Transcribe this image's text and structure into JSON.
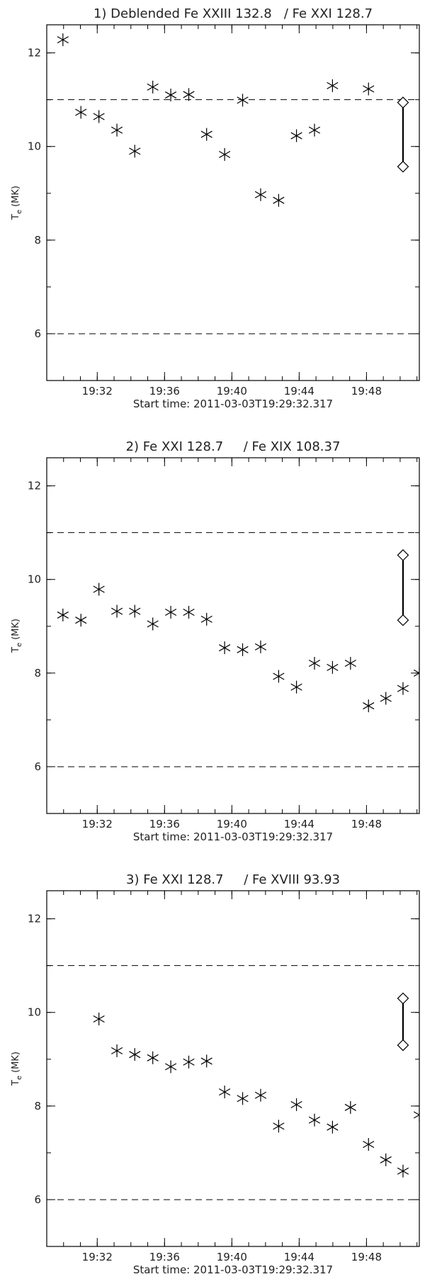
{
  "chart_data": [
    {
      "type": "scatter",
      "title": "1) Deblended Fe XXIII 132.8   / Fe XXI 128.7",
      "xlabel": "Start time: 2011-03-03T19:29:32.317",
      "ylabel": "T",
      "ylabel_subscript": "e",
      "ylabel_unit": "(MK)",
      "xlim": [
        29,
        51.14
      ],
      "ylim": [
        5,
        12.6
      ],
      "xticks": [
        {
          "value": 32,
          "label": "19:32"
        },
        {
          "value": 36,
          "label": "19:36"
        },
        {
          "value": 40,
          "label": "19:40"
        },
        {
          "value": 44,
          "label": "19:44"
        },
        {
          "value": 48,
          "label": "19:48"
        }
      ],
      "yticks": [
        6,
        8,
        10,
        12
      ],
      "hlines": [
        6,
        11
      ],
      "series": [
        {
          "color": "#000000",
          "marker": "asterisk",
          "x": [
            29.96,
            31.03,
            32.1,
            33.17,
            34.23,
            35.3,
            36.37,
            37.44,
            38.5,
            39.57,
            40.64,
            41.71,
            42.78,
            43.84,
            44.91,
            45.98,
            48.12
          ],
          "values": [
            12.28,
            10.73,
            10.64,
            10.35,
            9.9,
            11.27,
            11.1,
            11.11,
            10.26,
            9.83,
            10.99,
            8.97,
            8.85,
            10.23,
            10.35,
            11.3,
            11.23
          ]
        }
      ],
      "errorbar": {
        "x": 50.17,
        "low": 9.57,
        "high": 10.94,
        "marker": "diamond"
      }
    },
    {
      "type": "scatter",
      "title": "2) Fe XXI 128.7     / Fe XIX 108.37",
      "xlabel": "Start time: 2011-03-03T19:29:32.317",
      "ylabel": "T",
      "ylabel_subscript": "e",
      "ylabel_unit": "(MK)",
      "xlim": [
        29,
        51.14
      ],
      "ylim": [
        5,
        12.6
      ],
      "xticks": [
        {
          "value": 32,
          "label": "19:32"
        },
        {
          "value": 36,
          "label": "19:36"
        },
        {
          "value": 40,
          "label": "19:40"
        },
        {
          "value": 44,
          "label": "19:44"
        },
        {
          "value": 48,
          "label": "19:48"
        }
      ],
      "yticks": [
        6,
        8,
        10,
        12
      ],
      "hlines": [
        6,
        11
      ],
      "series": [
        {
          "color": "#000000",
          "marker": "asterisk",
          "x": [
            29.96,
            31.03,
            32.1,
            33.17,
            34.23,
            35.3,
            36.37,
            37.44,
            38.5,
            39.57,
            40.64,
            41.71,
            42.78,
            43.84,
            44.91,
            45.98,
            47.05,
            48.12,
            49.15,
            50.17,
            51.14
          ],
          "values": [
            9.24,
            9.13,
            9.79,
            9.32,
            9.32,
            9.05,
            9.3,
            9.3,
            9.15,
            8.54,
            8.5,
            8.56,
            7.93,
            7.7,
            8.21,
            8.12,
            8.21,
            7.3,
            7.46,
            7.67,
            8.0
          ]
        }
      ],
      "errorbar": {
        "x": 50.17,
        "low": 9.13,
        "high": 10.52,
        "marker": "diamond"
      }
    },
    {
      "type": "scatter",
      "title": "3) Fe XXI 128.7     / Fe XVIII 93.93",
      "xlabel": "Start time: 2011-03-03T19:29:32.317",
      "ylabel": "T",
      "ylabel_subscript": "e",
      "ylabel_unit": "(MK)",
      "xlim": [
        29,
        51.14
      ],
      "ylim": [
        5,
        12.6
      ],
      "xticks": [
        {
          "value": 32,
          "label": "19:32"
        },
        {
          "value": 36,
          "label": "19:36"
        },
        {
          "value": 40,
          "label": "19:40"
        },
        {
          "value": 44,
          "label": "19:44"
        },
        {
          "value": 48,
          "label": "19:48"
        }
      ],
      "yticks": [
        6,
        8,
        10,
        12
      ],
      "hlines": [
        6,
        11
      ],
      "series": [
        {
          "color": "#000000",
          "marker": "asterisk",
          "x": [
            32.1,
            33.17,
            34.23,
            35.3,
            36.37,
            37.44,
            38.5,
            39.57,
            40.64,
            41.71,
            42.78,
            43.84,
            44.91,
            45.98,
            47.05,
            48.12,
            49.15,
            50.17,
            51.14
          ],
          "values": [
            9.86,
            9.18,
            9.1,
            9.03,
            8.84,
            8.94,
            8.96,
            8.3,
            8.16,
            8.23,
            7.57,
            8.03,
            7.7,
            7.55,
            7.97,
            7.18,
            6.85,
            6.61,
            7.81
          ]
        }
      ],
      "errorbar": {
        "x": 50.17,
        "low": 9.3,
        "high": 10.3,
        "marker": "diamond"
      }
    }
  ]
}
